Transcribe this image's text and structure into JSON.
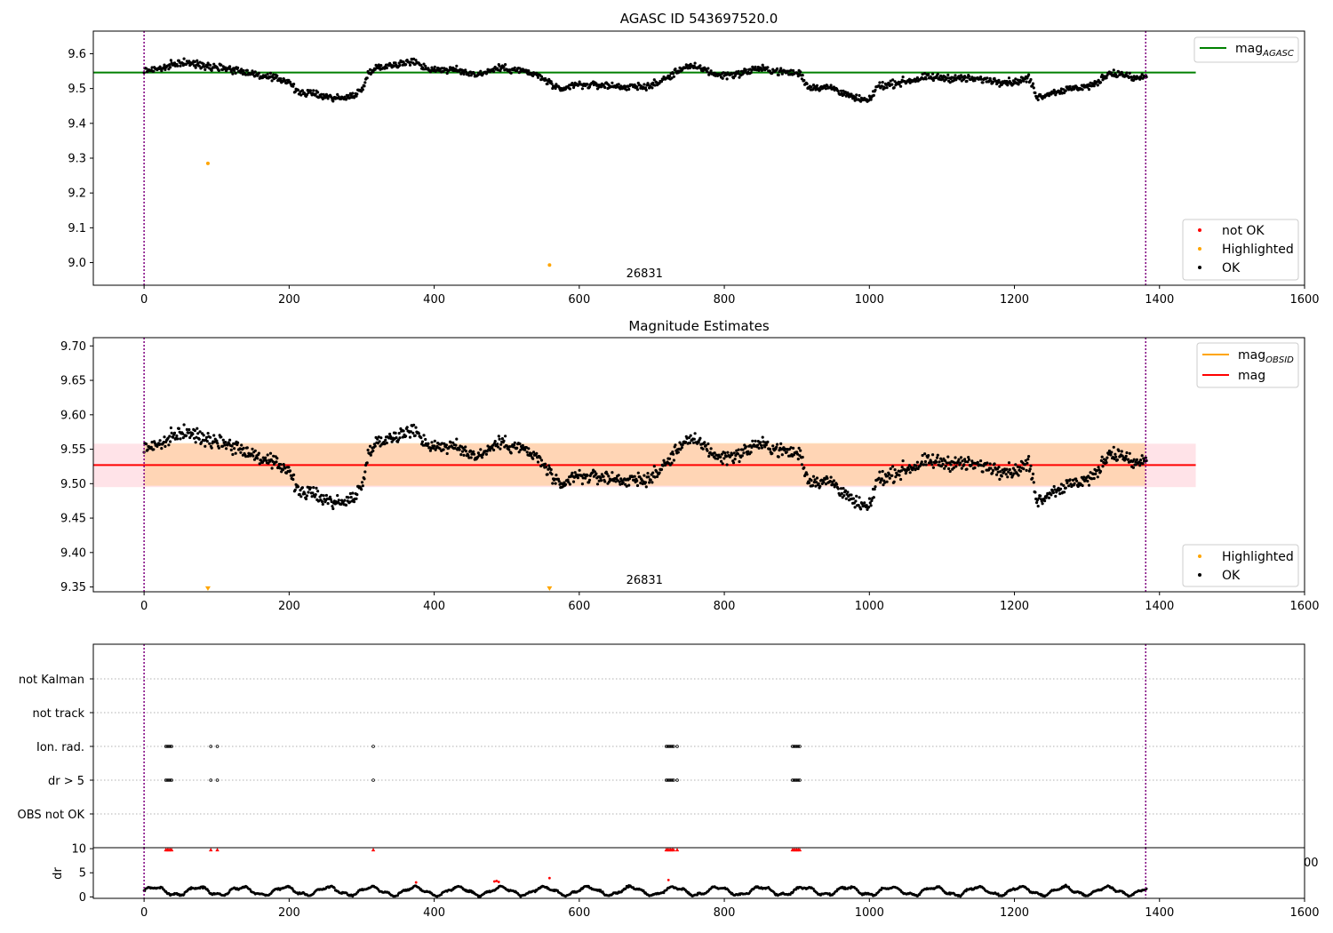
{
  "figure": {
    "background": "#ffffff"
  },
  "chart_data": [
    {
      "type": "scatter",
      "title": "AGASC ID 543697520.0",
      "xlim": [
        -70,
        1600
      ],
      "ylim": [
        8.935,
        9.665
      ],
      "xticks": [
        0,
        200,
        400,
        600,
        800,
        1000,
        1200,
        1400,
        1600
      ],
      "yticks": [
        9.0,
        9.1,
        9.2,
        9.3,
        9.4,
        9.5,
        9.6
      ],
      "ytick_labels": [
        "9.0",
        "9.1",
        "9.2",
        "9.3",
        "9.4",
        "9.5",
        "9.6"
      ],
      "vlines": [
        0,
        1381
      ],
      "vline_color": "#800080",
      "hline": {
        "y": 9.546,
        "x_range": [
          -70,
          1450
        ],
        "color": "#008000"
      },
      "obsid_label": {
        "text": "26831",
        "x": 690
      },
      "series": [
        {
          "name": "OK",
          "color": "#000000",
          "curve": "main",
          "x_range": [
            0,
            1382
          ],
          "count": 1380
        },
        {
          "name": "Highlighted",
          "color": "#ffa500",
          "points": [
            [
              88,
              9.285
            ],
            [
              559,
              8.993
            ]
          ]
        },
        {
          "name": "not OK",
          "color": "#ff0000",
          "points": []
        }
      ],
      "legend_lines": [
        {
          "label": "mag",
          "sub": "AGASC",
          "color": "#008000"
        }
      ],
      "legend_markers": [
        {
          "label": "not OK",
          "color": "#ff0000"
        },
        {
          "label": "Highlighted",
          "color": "#ffa500"
        },
        {
          "label": "OK",
          "color": "#000000"
        }
      ]
    },
    {
      "type": "scatter",
      "title": "Magnitude Estimates",
      "xlim": [
        -70,
        1600
      ],
      "ylim": [
        9.343,
        9.712
      ],
      "xticks": [
        0,
        200,
        400,
        600,
        800,
        1000,
        1200,
        1400,
        1600
      ],
      "yticks": [
        9.35,
        9.4,
        9.45,
        9.5,
        9.55,
        9.6,
        9.65,
        9.7
      ],
      "ytick_labels": [
        "9.35",
        "9.40",
        "9.45",
        "9.50",
        "9.55",
        "9.60",
        "9.65",
        "9.70"
      ],
      "vlines": [
        0,
        1381
      ],
      "vline_color": "#800080",
      "bands": [
        {
          "y0": 9.495,
          "y1": 9.558,
          "x_range": [
            -70,
            1450
          ],
          "color": "#ffc0cb",
          "opacity": 0.45
        },
        {
          "y0": 9.497,
          "y1": 9.559,
          "x_range": [
            0,
            1381
          ],
          "color": "#ffa500",
          "opacity": 0.22
        }
      ],
      "hline": {
        "y": 9.527,
        "x_range": [
          -70,
          1450
        ],
        "color": "#ff0000"
      },
      "obsid_label": {
        "text": "26831",
        "x": 690
      },
      "series": [
        {
          "name": "OK",
          "color": "#000000",
          "curve": "main",
          "x_range": [
            0,
            1382
          ],
          "count": 1380
        },
        {
          "name": "Highlighted",
          "color": "#ffa500",
          "marker": "triangle-down",
          "points": [
            [
              88,
              9.347
            ],
            [
              559,
              9.347
            ]
          ]
        }
      ],
      "legend_lines": [
        {
          "label": "mag",
          "sub": "OBSID",
          "color": "#ffa500"
        },
        {
          "label": "mag",
          "sub": "",
          "color": "#ff0000"
        }
      ],
      "legend_markers": [
        {
          "label": "Highlighted",
          "color": "#ffa500"
        },
        {
          "label": "OK",
          "color": "#000000"
        }
      ]
    },
    {
      "type": "scatter",
      "title": "",
      "xlim": [
        -70,
        1600
      ],
      "categories": [
        "not Kalman",
        "not track",
        "Ion. rad.",
        "dr > 5",
        "OBS not OK"
      ],
      "vlines": [
        0,
        1381
      ],
      "vline_color": "#800080",
      "flags": {
        "Ion. rad.": [
          30,
          32,
          34,
          36,
          38,
          92,
          101,
          316,
          720,
          722,
          724,
          726,
          728,
          730,
          735,
          894,
          896,
          898,
          900,
          902,
          904
        ],
        "dr > 5": [
          30,
          32,
          34,
          36,
          38,
          92,
          101,
          316,
          720,
          722,
          724,
          726,
          728,
          730,
          735,
          894,
          896,
          898,
          900,
          902,
          904
        ]
      }
    },
    {
      "type": "scatter",
      "title": "",
      "ylabel": "dr",
      "xlim": [
        -70,
        1600
      ],
      "ylim": [
        -0.3,
        10.2
      ],
      "yticks": [
        0,
        5,
        10
      ],
      "ytick_labels": [
        "0",
        "5",
        "10"
      ],
      "xticks": [
        0,
        200,
        400,
        600,
        800,
        1000,
        1200,
        1400,
        1600
      ],
      "vlines": [
        0,
        1381
      ],
      "vline_color": "#800080",
      "clipped_points": [
        30,
        32,
        34,
        36,
        38,
        92,
        101,
        316,
        720,
        722,
        724,
        726,
        728,
        730,
        735,
        894,
        896,
        898,
        900,
        902,
        904
      ],
      "red_points": [
        [
          375,
          3.0
        ],
        [
          483,
          3.2
        ],
        [
          486,
          3.3
        ],
        [
          489,
          3.1
        ],
        [
          559,
          3.9
        ],
        [
          723,
          3.5
        ]
      ],
      "series": [
        {
          "name": "dr",
          "color": "#000000",
          "curve": "dr",
          "x_range": [
            0,
            1382
          ],
          "count": 1380
        }
      ],
      "overlap_label": "00"
    }
  ]
}
